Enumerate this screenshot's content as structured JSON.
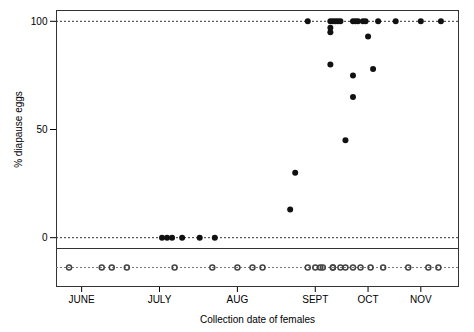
{
  "chart_data": {
    "type": "scatter",
    "xlabel": "Collection date of females",
    "ylabel": "% diapause eggs",
    "xlim": [
      0,
      160
    ],
    "ylim": [
      -5,
      105
    ],
    "yticks": [
      0,
      50,
      100
    ],
    "xticks": [
      {
        "value": 10,
        "label": "JUNE"
      },
      {
        "value": 41,
        "label": "JULY"
      },
      {
        "value": 72,
        "label": "AUG"
      },
      {
        "value": 103,
        "label": "SEPT"
      },
      {
        "value": 124,
        "label": "OCT"
      },
      {
        "value": 145,
        "label": "NOV"
      }
    ],
    "reference_lines": [
      0,
      100
    ],
    "series": [
      {
        "marker": "filled",
        "color": "#111111",
        "x": [
          42,
          44,
          46,
          50,
          57,
          63,
          93,
          95,
          100,
          109,
          109,
          109,
          109,
          110,
          111,
          112,
          113,
          115,
          118,
          118,
          118,
          119,
          120,
          122,
          123,
          124,
          126,
          128,
          135,
          145,
          153
        ],
        "values": [
          0,
          0,
          0,
          0,
          0,
          0,
          13,
          30,
          100,
          80,
          95,
          97,
          100,
          100,
          100,
          100,
          100,
          45,
          65,
          75,
          100,
          100,
          100,
          100,
          100,
          93,
          78,
          100,
          100,
          100,
          100
        ]
      },
      {
        "marker": "open",
        "color": "#444444",
        "x": [
          5,
          18,
          22,
          28,
          47,
          62,
          72,
          78,
          82,
          100,
          103,
          105,
          106,
          110,
          110,
          113,
          115,
          118,
          121,
          125,
          130,
          140,
          148,
          152
        ]
      }
    ]
  }
}
